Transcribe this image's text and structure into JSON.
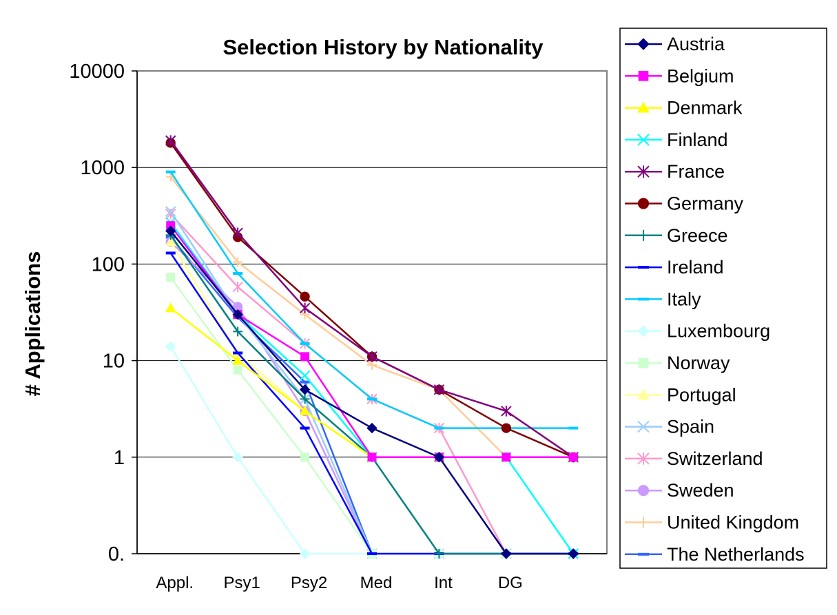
{
  "chart_data": {
    "type": "line",
    "title": "Selection History by Nationality",
    "ylabel": "# Applications",
    "xlabel": "",
    "y_scale": "log",
    "categories": [
      "Appl.",
      "Psy1",
      "Psy2",
      "Med",
      "Int",
      "DG",
      ""
    ],
    "y_ticks": [
      {
        "value": 0.1,
        "label": "0."
      },
      {
        "value": 1,
        "label": "1"
      },
      {
        "value": 10,
        "label": "10"
      },
      {
        "value": 100,
        "label": "100"
      },
      {
        "value": 1000,
        "label": "1000"
      },
      {
        "value": 10000,
        "label": "10000"
      }
    ],
    "ylim": [
      0.1,
      10000
    ],
    "grid": true,
    "legend_position": "right",
    "series": [
      {
        "name": "Austria",
        "color": "#000080",
        "marker": "diamond",
        "values": [
          220,
          30,
          5,
          2,
          1,
          0.1,
          0.1
        ]
      },
      {
        "name": "Belgium",
        "color": "#FF00FF",
        "marker": "square",
        "values": [
          250,
          30,
          11,
          1,
          1,
          1,
          1
        ]
      },
      {
        "name": "Denmark",
        "color": "#FFFF00",
        "marker": "triangle",
        "values": [
          35,
          10,
          3,
          1,
          1,
          1,
          1
        ]
      },
      {
        "name": "Finland",
        "color": "#00FFFF",
        "marker": "x",
        "values": [
          270,
          30,
          7,
          1,
          1,
          1,
          0.1
        ]
      },
      {
        "name": "France",
        "color": "#800080",
        "marker": "star",
        "values": [
          1900,
          210,
          35,
          11,
          5,
          3,
          1
        ]
      },
      {
        "name": "Germany",
        "color": "#800000",
        "marker": "circle",
        "values": [
          1800,
          190,
          46,
          11,
          5,
          2,
          1
        ]
      },
      {
        "name": "Greece",
        "color": "#008080",
        "marker": "plus",
        "values": [
          200,
          20,
          4,
          1,
          0.1,
          0.1,
          0.1
        ]
      },
      {
        "name": "Ireland",
        "color": "#0000FF",
        "marker": "dash",
        "values": [
          130,
          12,
          2,
          0.1,
          0.1,
          0.1,
          0.1
        ]
      },
      {
        "name": "Italy",
        "color": "#00CCFF",
        "marker": "dash",
        "values": [
          900,
          80,
          15,
          4,
          2,
          2,
          2
        ]
      },
      {
        "name": "Luxembourg",
        "color": "#CCFFFF",
        "marker": "diamond",
        "values": [
          14,
          1,
          0.1,
          0.1,
          0.1,
          0.1,
          0.1
        ]
      },
      {
        "name": "Norway",
        "color": "#CCFFCC",
        "marker": "square",
        "values": [
          73,
          8,
          1,
          0.1,
          0.1,
          0.1,
          0.1
        ]
      },
      {
        "name": "Portugal",
        "color": "#FFFF99",
        "marker": "triangle",
        "values": [
          170,
          12,
          3,
          1,
          1,
          1,
          1
        ]
      },
      {
        "name": "Spain",
        "color": "#99CCFF",
        "marker": "x",
        "values": [
          350,
          30,
          4,
          0.1,
          0.1,
          0.1,
          0.1
        ]
      },
      {
        "name": "Switzerland",
        "color": "#FF99CC",
        "marker": "star",
        "values": [
          330,
          58,
          15,
          4,
          2,
          0.1,
          0.1
        ]
      },
      {
        "name": "Sweden",
        "color": "#CC99FF",
        "marker": "circle",
        "values": [
          170,
          36,
          3,
          0.1,
          0.1,
          0.1,
          0.1
        ]
      },
      {
        "name": "United Kingdom",
        "color": "#FFCC99",
        "marker": "plus",
        "values": [
          800,
          105,
          30,
          9,
          5,
          1,
          1
        ]
      },
      {
        "name": "The Netherlands",
        "color": "#3366FF",
        "marker": "dash",
        "values": [
          190,
          28,
          6,
          0.1,
          0.1,
          0.1,
          0.1
        ]
      }
    ]
  }
}
